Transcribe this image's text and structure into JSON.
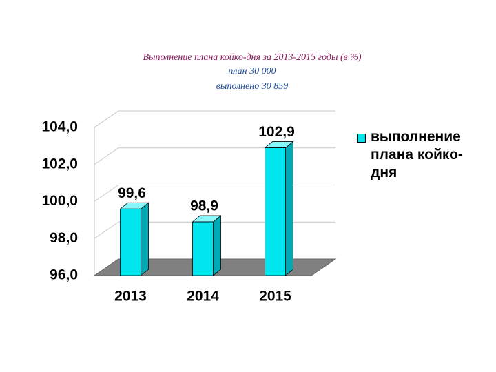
{
  "chart_data": {
    "type": "bar",
    "title": "Выполнение плана койко-дня за 2013-2015 годы (в %)",
    "subtitle": [
      "план 30 000",
      "выполнено 30 859"
    ],
    "categories": [
      "2013",
      "2014",
      "2015"
    ],
    "series": [
      {
        "name": "выполнение плана койко-дня",
        "color": "#00e5ee",
        "values": [
          99.6,
          98.9,
          102.9
        ],
        "value_labels": [
          "99,6",
          "98,9",
          "102,9"
        ]
      }
    ],
    "ylim": [
      96,
      104
    ],
    "yticks": [
      {
        "value": 96,
        "label": "96,0"
      },
      {
        "value": 98,
        "label": "98,0"
      },
      {
        "value": 100,
        "label": "100,0"
      },
      {
        "value": 102,
        "label": "102,0"
      },
      {
        "value": 104,
        "label": "104,0"
      }
    ],
    "grid": true,
    "legend": "right"
  }
}
